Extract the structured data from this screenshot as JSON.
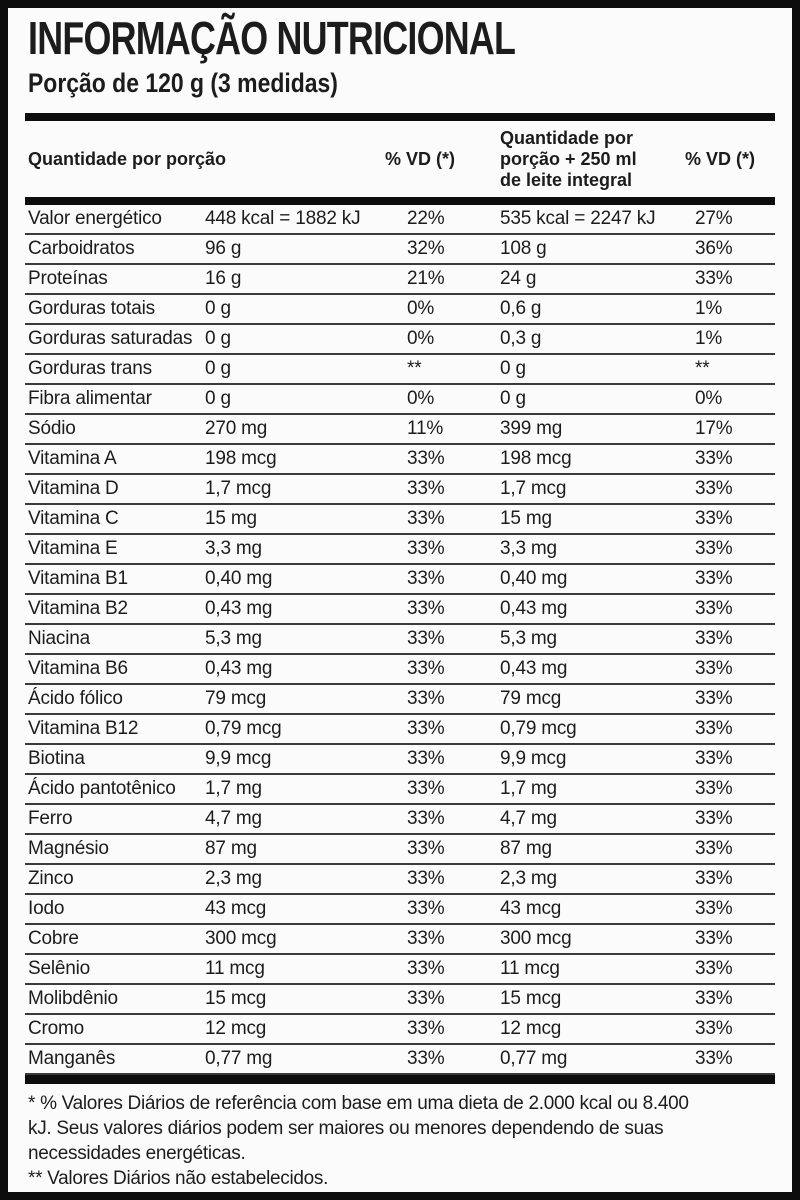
{
  "label": {
    "title": "INFORMAÇÃO NUTRICIONAL",
    "serving": "Porção de 120 g (3 medidas)",
    "columns": {
      "amount_per_serving": "Quantidade por porção",
      "vd1": "% VD (*)",
      "amount_with_milk": "Quantidade por porção + 250 ml de leite integral",
      "vd2": "% VD (*)"
    },
    "rows": [
      {
        "name": "Valor energético",
        "amount": "448 kcal = 1882 kJ",
        "vd": "22%",
        "amount_milk": "535 kcal = 2247 kJ",
        "vd_milk": "27%"
      },
      {
        "name": "Carboidratos",
        "amount": "96 g",
        "vd": "32%",
        "amount_milk": "108 g",
        "vd_milk": "36%"
      },
      {
        "name": "Proteínas",
        "amount": "16 g",
        "vd": "21%",
        "amount_milk": "24 g",
        "vd_milk": "33%"
      },
      {
        "name": "Gorduras totais",
        "amount": "0 g",
        "vd": "0%",
        "amount_milk": "0,6 g",
        "vd_milk": "1%"
      },
      {
        "name": "Gorduras saturadas",
        "amount": "0 g",
        "vd": "0%",
        "amount_milk": "0,3 g",
        "vd_milk": "1%"
      },
      {
        "name": "Gorduras trans",
        "amount": "0 g",
        "vd": "**",
        "amount_milk": "0 g",
        "vd_milk": "**"
      },
      {
        "name": "Fibra alimentar",
        "amount": "0 g",
        "vd": "0%",
        "amount_milk": "0 g",
        "vd_milk": "0%"
      },
      {
        "name": "Sódio",
        "amount": "270 mg",
        "vd": "11%",
        "amount_milk": "399 mg",
        "vd_milk": "17%"
      },
      {
        "name": "Vitamina A",
        "amount": "198 mcg",
        "vd": "33%",
        "amount_milk": "198 mcg",
        "vd_milk": "33%"
      },
      {
        "name": "Vitamina D",
        "amount": "1,7 mcg",
        "vd": "33%",
        "amount_milk": "1,7 mcg",
        "vd_milk": "33%"
      },
      {
        "name": "Vitamina C",
        "amount": "15 mg",
        "vd": "33%",
        "amount_milk": "15 mg",
        "vd_milk": "33%"
      },
      {
        "name": "Vitamina E",
        "amount": "3,3 mg",
        "vd": "33%",
        "amount_milk": "3,3 mg",
        "vd_milk": "33%"
      },
      {
        "name": "Vitamina B1",
        "amount": "0,40 mg",
        "vd": "33%",
        "amount_milk": "0,40 mg",
        "vd_milk": "33%"
      },
      {
        "name": "Vitamina B2",
        "amount": "0,43 mg",
        "vd": "33%",
        "amount_milk": "0,43 mg",
        "vd_milk": "33%"
      },
      {
        "name": "Niacina",
        "amount": "5,3 mg",
        "vd": "33%",
        "amount_milk": "5,3 mg",
        "vd_milk": "33%"
      },
      {
        "name": "Vitamina B6",
        "amount": "0,43 mg",
        "vd": "33%",
        "amount_milk": "0,43 mg",
        "vd_milk": "33%"
      },
      {
        "name": "Ácido fólico",
        "amount": "79 mcg",
        "vd": "33%",
        "amount_milk": "79 mcg",
        "vd_milk": "33%"
      },
      {
        "name": "Vitamina B12",
        "amount": "0,79 mcg",
        "vd": "33%",
        "amount_milk": "0,79 mcg",
        "vd_milk": "33%"
      },
      {
        "name": "Biotina",
        "amount": "9,9 mcg",
        "vd": "33%",
        "amount_milk": "9,9 mcg",
        "vd_milk": "33%"
      },
      {
        "name": "Ácido pantotênico",
        "amount": "1,7 mg",
        "vd": "33%",
        "amount_milk": "1,7 mg",
        "vd_milk": "33%"
      },
      {
        "name": "Ferro",
        "amount": "4,7 mg",
        "vd": "33%",
        "amount_milk": "4,7 mg",
        "vd_milk": "33%"
      },
      {
        "name": "Magnésio",
        "amount": "87 mg",
        "vd": "33%",
        "amount_milk": "87 mg",
        "vd_milk": "33%"
      },
      {
        "name": "Zinco",
        "amount": "2,3 mg",
        "vd": "33%",
        "amount_milk": "2,3 mg",
        "vd_milk": "33%"
      },
      {
        "name": "Iodo",
        "amount": "43 mcg",
        "vd": "33%",
        "amount_milk": "43 mcg",
        "vd_milk": "33%"
      },
      {
        "name": "Cobre",
        "amount": "300 mcg",
        "vd": "33%",
        "amount_milk": "300 mcg",
        "vd_milk": "33%"
      },
      {
        "name": "Selênio",
        "amount": "11 mcg",
        "vd": "33%",
        "amount_milk": "11 mcg",
        "vd_milk": "33%"
      },
      {
        "name": "Molibdênio",
        "amount": "15 mcg",
        "vd": "33%",
        "amount_milk": "15 mcg",
        "vd_milk": "33%"
      },
      {
        "name": "Cromo",
        "amount": "12 mcg",
        "vd": "33%",
        "amount_milk": "12 mcg",
        "vd_milk": "33%"
      },
      {
        "name": "Manganês",
        "amount": "0,77 mg",
        "vd": "33%",
        "amount_milk": "0,77 mg",
        "vd_milk": "33%"
      }
    ],
    "footnotes": {
      "note1_lines": [
        "* % Valores Diários de referência com base em uma dieta de 2.000 kcal ou 8.400",
        "kJ. Seus valores diários podem ser maiores ou menores dependendo de suas",
        "necessidades energéticas."
      ],
      "note2": "** Valores Diários não estabelecidos."
    },
    "colors": {
      "frame": "#0d0d0d",
      "text": "#1c1c1c",
      "background": "#fbfbfb",
      "separator": "#3a3a3a"
    }
  }
}
